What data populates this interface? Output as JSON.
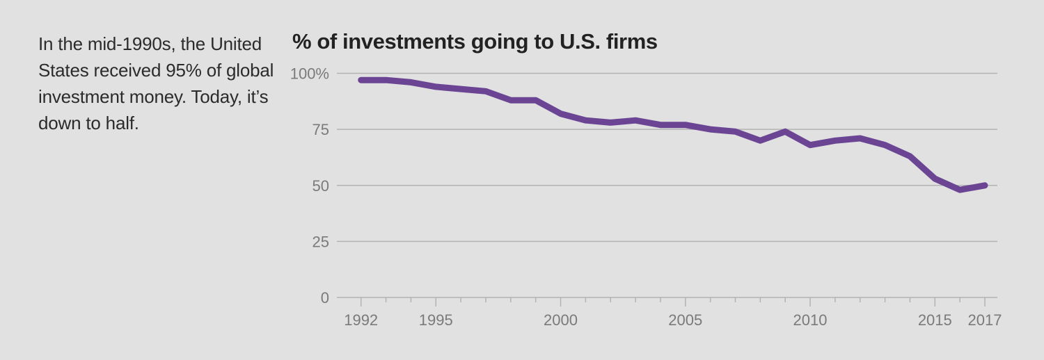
{
  "intro": {
    "text": "In the mid-1990s, the United States received 95% of global investment money. Today, it’s down to half."
  },
  "chart_data": {
    "type": "line",
    "title": "% of investments going to U.S. firms",
    "xlabel": "",
    "ylabel": "",
    "xlim": [
      1992,
      2017
    ],
    "ylim": [
      0,
      100
    ],
    "grid": true,
    "legend": "none",
    "y_ticks": [
      {
        "value": 100,
        "label": "100%"
      },
      {
        "value": 75,
        "label": "75"
      },
      {
        "value": 50,
        "label": "50"
      },
      {
        "value": 25,
        "label": "25"
      },
      {
        "value": 0,
        "label": "0"
      }
    ],
    "x_major_ticks": [
      {
        "value": 1992,
        "label": "1992"
      },
      {
        "value": 1995,
        "label": "1995"
      },
      {
        "value": 2000,
        "label": "2000"
      },
      {
        "value": 2005,
        "label": "2005"
      },
      {
        "value": 2010,
        "label": "2010"
      },
      {
        "value": 2015,
        "label": "2015"
      },
      {
        "value": 2017,
        "label": "2017"
      }
    ],
    "x": [
      1992,
      1993,
      1994,
      1995,
      1996,
      1997,
      1998,
      1999,
      2000,
      2001,
      2002,
      2003,
      2004,
      2005,
      2006,
      2007,
      2008,
      2009,
      2010,
      2011,
      2012,
      2013,
      2014,
      2015,
      2016,
      2017
    ],
    "series": [
      {
        "name": "% of investments going to U.S. firms",
        "color": "#6b4594",
        "values": [
          97,
          97,
          96,
          94,
          93,
          92,
          88,
          88,
          82,
          79,
          78,
          79,
          77,
          77,
          75,
          74,
          70,
          74,
          68,
          70,
          71,
          68,
          63,
          53,
          48,
          50
        ]
      }
    ]
  },
  "colors": {
    "background": "#e1e1e1",
    "grid": "#b3b3b3",
    "tick_label": "#7a7a7a",
    "line": "#6b4594"
  }
}
